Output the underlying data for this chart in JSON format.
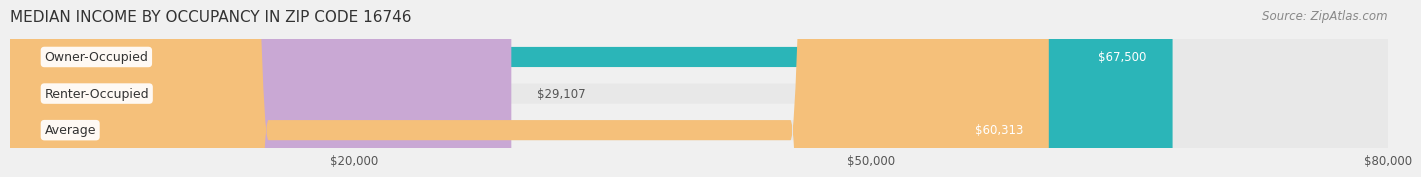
{
  "title": "MEDIAN INCOME BY OCCUPANCY IN ZIP CODE 16746",
  "source": "Source: ZipAtlas.com",
  "categories": [
    "Owner-Occupied",
    "Renter-Occupied",
    "Average"
  ],
  "values": [
    67500,
    29107,
    60313
  ],
  "bar_colors": [
    "#2bb5b8",
    "#c9a8d4",
    "#f5c07a"
  ],
  "label_colors": [
    "#ffffff",
    "#555555",
    "#ffffff"
  ],
  "value_labels": [
    "$67,500",
    "$29,107",
    "$60,313"
  ],
  "xlim": [
    0,
    80000
  ],
  "xticks": [
    0,
    20000,
    50000,
    80000
  ],
  "xtick_labels": [
    "",
    "$20,000",
    "$50,000",
    "$80,000"
  ],
  "bar_height": 0.55,
  "background_color": "#f0f0f0",
  "bar_bg_color": "#e8e8e8",
  "title_fontsize": 11,
  "source_fontsize": 8.5,
  "label_fontsize": 9,
  "value_fontsize": 8.5
}
